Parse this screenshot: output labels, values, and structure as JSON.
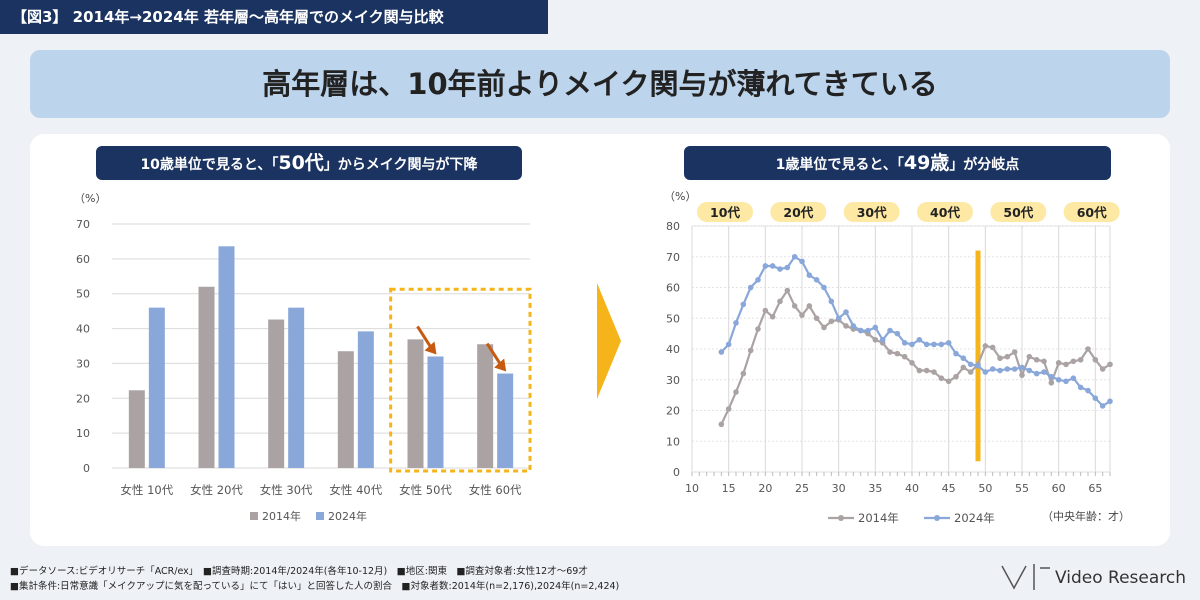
{
  "figure_label": "【図3】 2014年→2024年 若年層〜高年層でのメイク関与比較",
  "headline": "高年層は、10年前よりメイク関与が薄れてきている",
  "left_subhead": {
    "pre": "10歳単位で見ると、「",
    "big": "50代",
    "post": "」からメイク関与が下降"
  },
  "right_subhead": {
    "pre": "1歳単位で見ると、「",
    "big": "49歳",
    "post": "」が分岐点"
  },
  "footer_line1": "■データソース:ビデオリサーチ「ACR/ex」　■調査時期:2014年/2024年(各年10-12月)　■地区:関東　■調査対象者:女性12才〜69才",
  "footer_line2": "■集計条件:日常意識「メイクアップに気を配っている」にて「はい」と回答した人の割合　■対象者数:2014年(n=2,176),2024年(n=2,424)",
  "logo_text": "Video Research",
  "colors": {
    "navy": "#1b3361",
    "gray_series": "#aba3a3",
    "blue_series": "#8aa7d9",
    "highlight": "#f5b41a",
    "arrow": "#c65a11"
  },
  "chart_data": [
    {
      "type": "bar",
      "ylabel": "（%）",
      "ylim": [
        0,
        70
      ],
      "yticks": [
        "0",
        "10",
        "20",
        "30",
        "40",
        "50",
        "60",
        "70"
      ],
      "categories": [
        "女性 10代",
        "女性 20代",
        "女性 30代",
        "女性 40代",
        "女性 50代",
        "女性 60代"
      ],
      "series": [
        {
          "name": "2014年",
          "values": [
            22.3,
            52.0,
            42.6,
            33.5,
            36.9,
            35.5
          ]
        },
        {
          "name": "2024年",
          "values": [
            46.0,
            63.6,
            46.0,
            39.2,
            32.0,
            27.1
          ]
        }
      ],
      "legend": "bottom",
      "highlight": [
        "女性 50代",
        "女性 60代"
      ]
    },
    {
      "type": "line",
      "ylabel": "（%）",
      "xlabel": "（中央年齢：才）",
      "xlim": [
        10,
        67
      ],
      "ylim": [
        0,
        80
      ],
      "xticks": [
        "10",
        "15",
        "20",
        "25",
        "30",
        "35",
        "40",
        "45",
        "50",
        "55",
        "60",
        "65"
      ],
      "yticks": [
        "0",
        "10",
        "20",
        "30",
        "40",
        "50",
        "60",
        "70",
        "80"
      ],
      "age_bands": [
        {
          "label": "10代",
          "center": 14.5
        },
        {
          "label": "20代",
          "center": 24.5
        },
        {
          "label": "30代",
          "center": 34.5
        },
        {
          "label": "40代",
          "center": 44.5
        },
        {
          "label": "50代",
          "center": 54.5
        },
        {
          "label": "60代",
          "center": 64.5
        }
      ],
      "marker_line_x": 49,
      "x": [
        14,
        15,
        16,
        17,
        18,
        19,
        20,
        21,
        22,
        23,
        24,
        25,
        26,
        27,
        28,
        29,
        30,
        31,
        32,
        33,
        34,
        35,
        36,
        37,
        38,
        39,
        40,
        41,
        42,
        43,
        44,
        45,
        46,
        47,
        48,
        49,
        50,
        51,
        52,
        53,
        54,
        55,
        56,
        57,
        58,
        59,
        60,
        61,
        62,
        63,
        64,
        65,
        66,
        67
      ],
      "series": [
        {
          "name": "2014年",
          "values": [
            15.5,
            20.5,
            26,
            32,
            39.5,
            46.5,
            52.5,
            50.5,
            55.5,
            59,
            54,
            51,
            54,
            50,
            47,
            49,
            49.5,
            47.5,
            46.5,
            46,
            45,
            43,
            42,
            39,
            38.5,
            37.5,
            35.5,
            33,
            33,
            32.5,
            30.5,
            29.5,
            31,
            34,
            32.5,
            35,
            41,
            40.5,
            37,
            37.5,
            39,
            31.5,
            37.5,
            36.5,
            36,
            29,
            35.5,
            35,
            36,
            36.5,
            40,
            36.5,
            33.5,
            35
          ]
        },
        {
          "name": "2024年",
          "values": [
            39,
            41.5,
            48.5,
            54.5,
            60,
            62.5,
            67,
            67,
            66,
            66.5,
            70,
            68.5,
            64,
            62.5,
            60,
            55.5,
            50,
            52,
            47.5,
            46,
            46,
            47,
            43,
            46,
            45,
            42,
            41.5,
            43,
            41.5,
            41.5,
            41.5,
            42,
            38.5,
            37,
            35,
            34.5,
            32.5,
            33.5,
            33,
            33.5,
            33.5,
            34,
            33,
            32,
            32.5,
            31,
            30,
            29.5,
            30.5,
            27.5,
            26.5,
            24,
            21.5,
            23
          ]
        }
      ],
      "legend": "bottom"
    }
  ]
}
